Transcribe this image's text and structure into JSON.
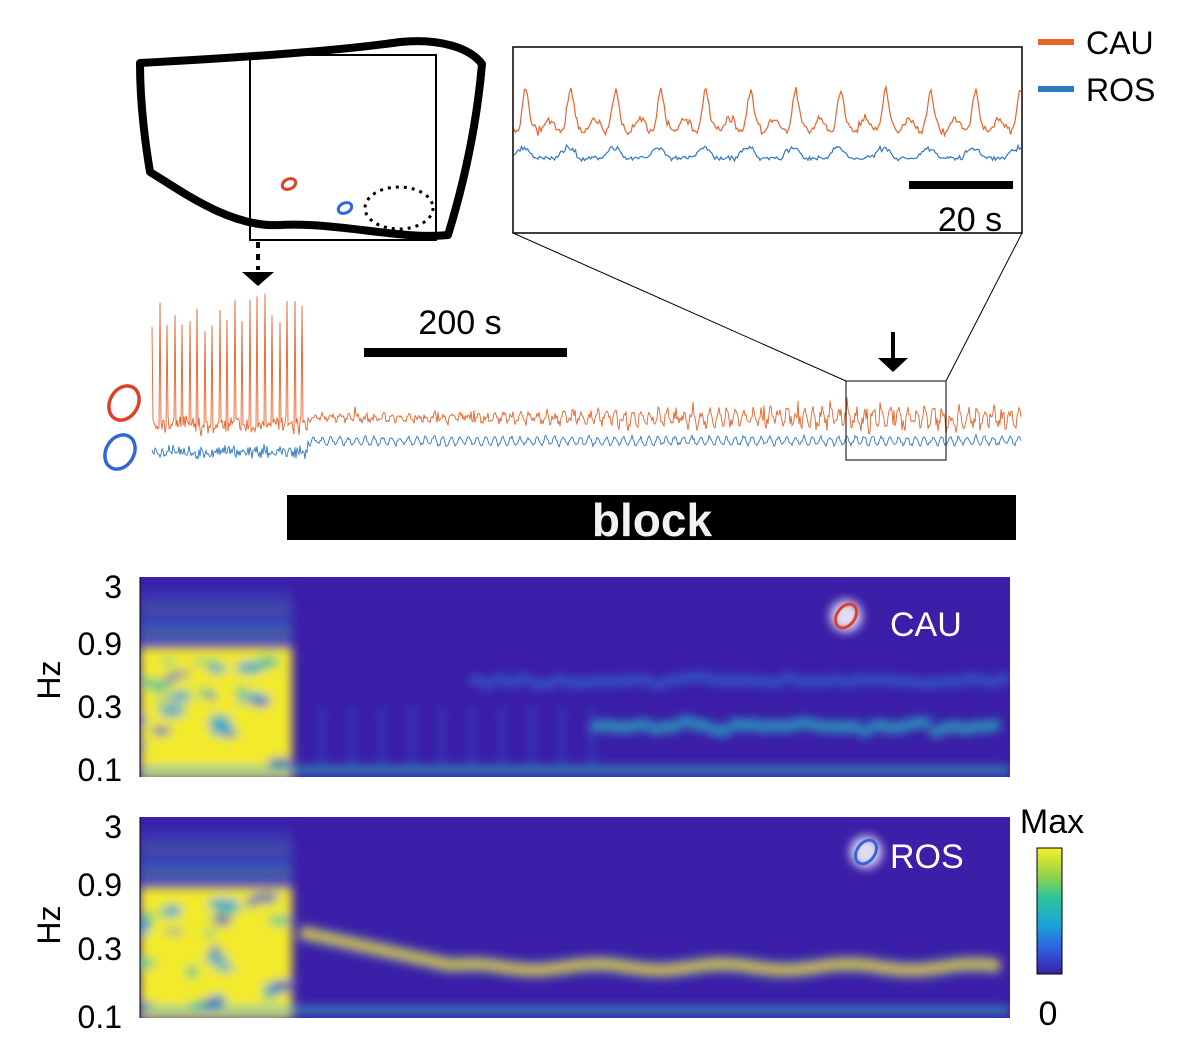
{
  "legend": {
    "items": [
      {
        "label": "CAU",
        "color": "#e8632a"
      },
      {
        "label": "ROS",
        "color": "#2f78c4"
      }
    ]
  },
  "scale_bars": {
    "inset": "20 s",
    "main": "200 s"
  },
  "block_label": "block",
  "colors": {
    "cau": "#e8632a",
    "ros": "#2f78c4",
    "cau_roi": "#e0402a",
    "ros_roi": "#3366dd",
    "spectro_bg": "#3b1fa8",
    "spectro_max": "#f7f02a"
  },
  "spectrograms": [
    {
      "name": "CAU",
      "ylabel": "Hz",
      "yticks": [
        "3",
        "0.9",
        "0.3",
        "0.1"
      ]
    },
    {
      "name": "ROS",
      "ylabel": "Hz",
      "yticks": [
        "3",
        "0.9",
        "0.3",
        "0.1"
      ]
    }
  ],
  "colorbar": {
    "max_label": "Max",
    "min_label": "0",
    "stops": [
      "#3b1fa8",
      "#2f5fe0",
      "#1aa7d8",
      "#2ac59a",
      "#9fd445",
      "#f7f02a"
    ]
  }
}
